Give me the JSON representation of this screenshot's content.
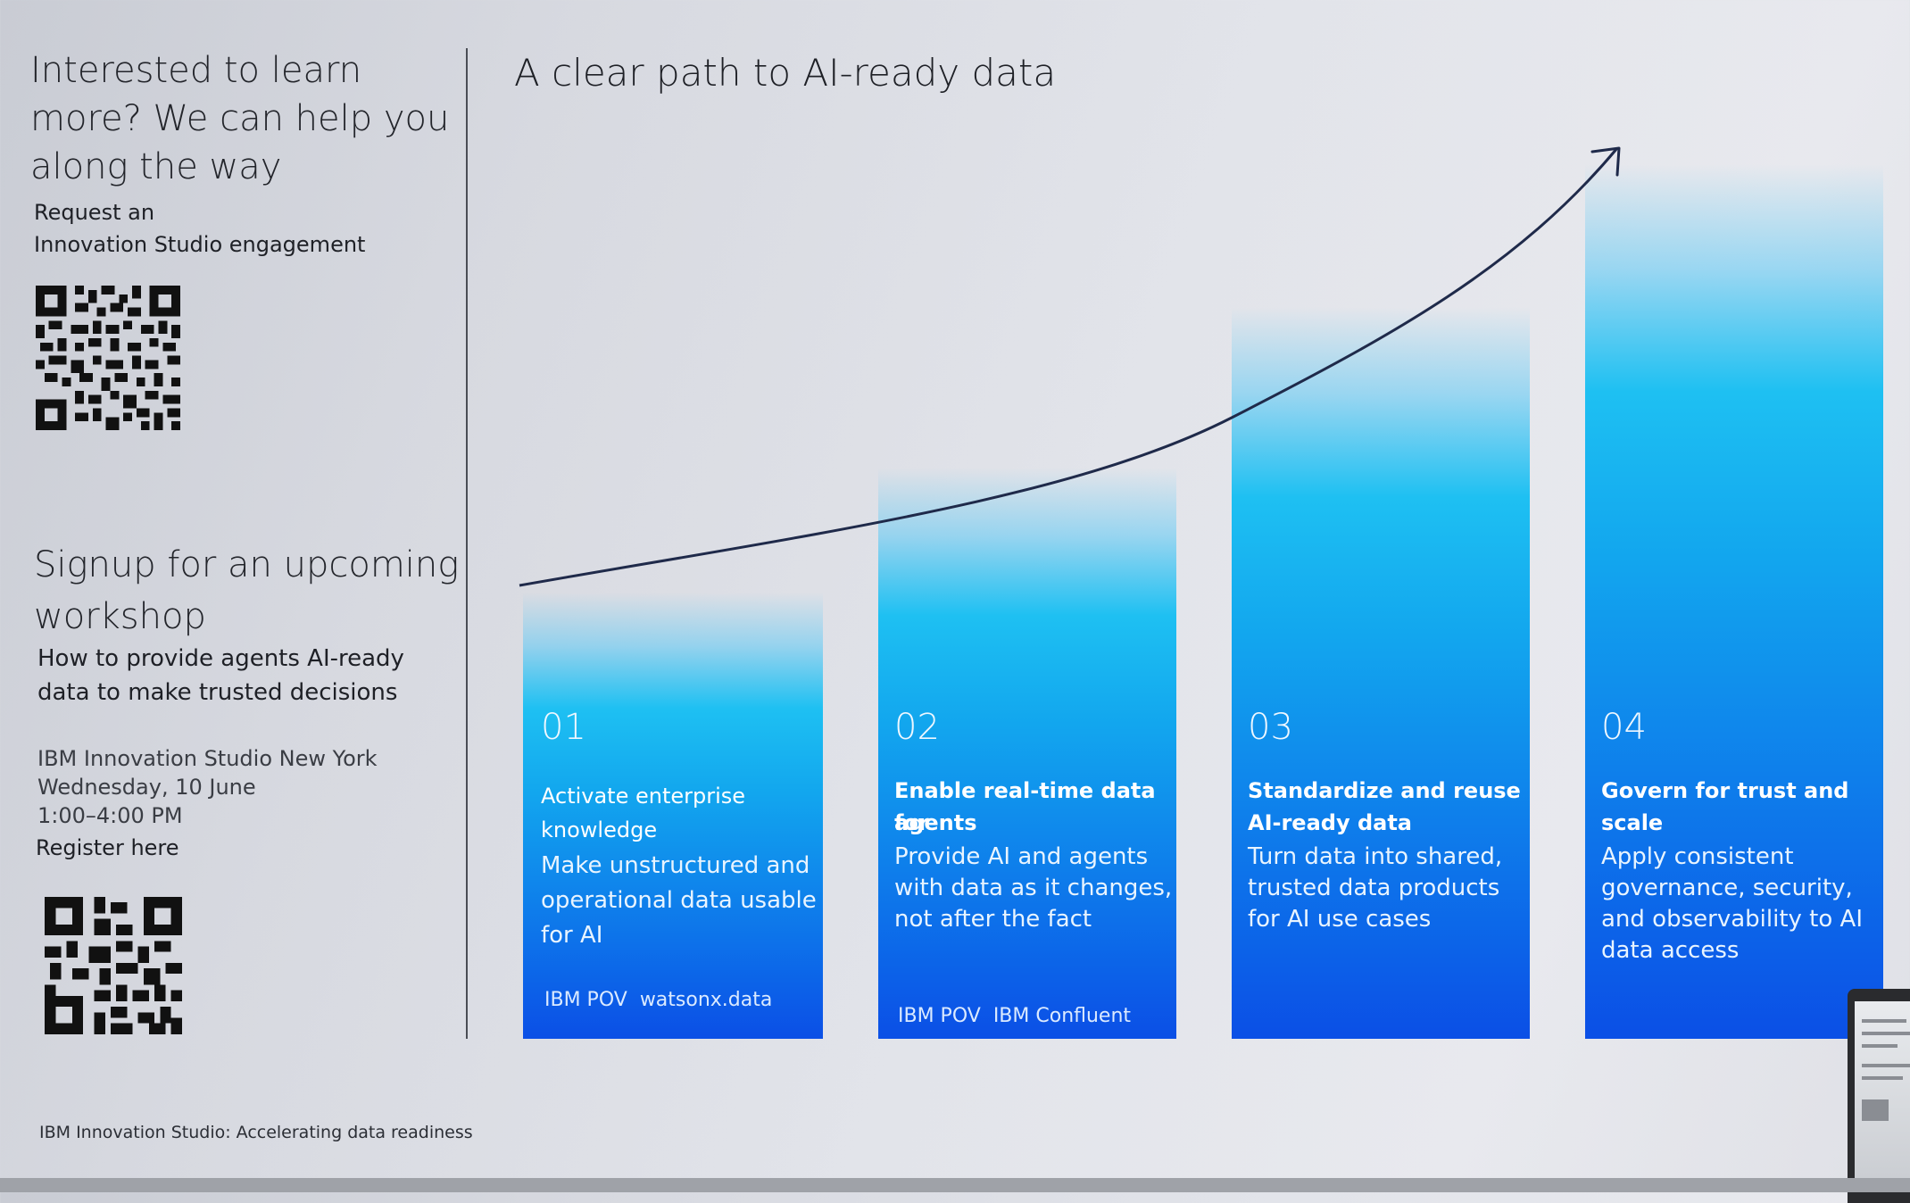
{
  "left": {
    "learn_heading": [
      "Interested to learn",
      "more? We can help you",
      "along the way"
    ],
    "request_lines": [
      "Request an",
      "Innovation Studio engagement"
    ],
    "signup_heading": [
      "Signup for an upcoming",
      "workshop"
    ],
    "workshop_topic": [
      "How to provide agents AI-ready",
      "data to make trusted decisions"
    ],
    "event_lines": [
      "IBM Innovation Studio New York",
      "Wednesday, 10 June",
      "1:00–4:00 PM"
    ],
    "register_label": "Register here"
  },
  "main": {
    "title": "A clear path to AI-ready data"
  },
  "steps": [
    {
      "number": "01",
      "title_lines": [
        "Activate enterprise",
        "knowledge"
      ],
      "desc_lines": [
        "Make unstructured and",
        "operational data usable",
        "for AI"
      ],
      "tags": [
        "IBM POV",
        "watsonx.data"
      ]
    },
    {
      "number": "02",
      "title_lines": [
        "Enable real-time data for",
        "agents"
      ],
      "desc_lines": [
        "Provide AI and agents",
        "with data as it changes,",
        "not after the fact"
      ],
      "tags": [
        "IBM POV",
        "IBM Confluent"
      ]
    },
    {
      "number": "03",
      "title_lines": [
        "Standardize and reuse",
        "AI-ready data"
      ],
      "desc_lines": [
        "Turn data into shared,",
        "trusted data products",
        "for AI use cases"
      ],
      "tags": []
    },
    {
      "number": "04",
      "title_lines": [
        "Govern for trust and",
        "scale"
      ],
      "desc_lines": [
        "Apply consistent",
        "governance, security,",
        "and observability to AI",
        "data access"
      ],
      "tags": []
    }
  ],
  "footer": "IBM Innovation Studio: Accelerating data readiness",
  "icons": {
    "qr_primary": "qr-code-icon",
    "qr_secondary": "qr-code-icon",
    "arrow": "arrow-up-right-icon"
  },
  "colors": {
    "bar_top": "#1ec0f2",
    "bar_bottom": "#0b4fe6",
    "curve": "#1f2a4a"
  }
}
